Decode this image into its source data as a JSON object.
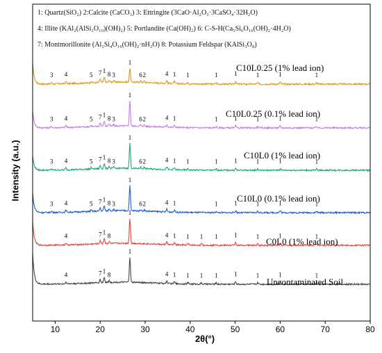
{
  "chart_data": {
    "type": "line",
    "title": "",
    "xlabel": "2θ(°)",
    "ylabel": "Intensity (a.u.)",
    "xlim": [
      5,
      80
    ],
    "x_ticks": [
      10,
      20,
      30,
      40,
      50,
      60,
      70,
      80
    ],
    "grid": false,
    "legend_position": "top-left",
    "legend_lines": [
      "1: Quartz(SiO₂) 2:Calcite (CaCO₃) 3: Ettringite (3CaO·Al₂O₃·3CaSO₄·32H₂O)",
      "4: Illite (KAl₂(AlSi₃O₁₀)(OH)₂) 5: Portlandite (Ca(OH)₂) 6: C-S-H(Ca₅Si₆O₁₆(OH)₂·4H₂O)",
      "7: Montmorillonite (Al₂Si₄O₁₀(OH)₂·nH₂O) 8: Potassium Feldspar (KAlSi₃O₈)"
    ],
    "series": [
      {
        "name": "C10L0.25 (1% lead ion)",
        "color": "#d99a1d",
        "peaks": [
          {
            "x": 9.2,
            "h": 2,
            "label": "3"
          },
          {
            "x": 12.4,
            "h": 3,
            "label": "4"
          },
          {
            "x": 18.0,
            "h": 2,
            "label": "5"
          },
          {
            "x": 20.0,
            "h": 5,
            "label": "7"
          },
          {
            "x": 20.9,
            "h": 8,
            "label": "1"
          },
          {
            "x": 22.0,
            "h": 3,
            "label": "8"
          },
          {
            "x": 23.0,
            "h": 2,
            "label": "3"
          },
          {
            "x": 26.6,
            "h": 20,
            "label": "1"
          },
          {
            "x": 29.0,
            "h": 2,
            "label": "6"
          },
          {
            "x": 29.8,
            "h": 2,
            "label": "2"
          },
          {
            "x": 34.8,
            "h": 4,
            "label": "4"
          },
          {
            "x": 36.5,
            "h": 3,
            "label": "1"
          },
          {
            "x": 39.5,
            "h": 2,
            "label": "1"
          },
          {
            "x": 45.8,
            "h": 2,
            "label": "1"
          },
          {
            "x": 50.1,
            "h": 4,
            "label": "1"
          },
          {
            "x": 55.0,
            "h": 2,
            "label": "1"
          },
          {
            "x": 60.0,
            "h": 3,
            "label": "1"
          },
          {
            "x": 68.1,
            "h": 2,
            "label": "1"
          }
        ]
      },
      {
        "name": "C10L0.25 (0.1% lead ion)",
        "color": "#c47ee6",
        "peaks": [
          {
            "x": 9.2,
            "h": 2,
            "label": "3"
          },
          {
            "x": 12.4,
            "h": 3,
            "label": "4"
          },
          {
            "x": 18.0,
            "h": 2,
            "label": "5"
          },
          {
            "x": 20.0,
            "h": 5,
            "label": "7"
          },
          {
            "x": 20.9,
            "h": 8,
            "label": "1"
          },
          {
            "x": 22.0,
            "h": 3,
            "label": "8"
          },
          {
            "x": 23.0,
            "h": 2,
            "label": "3"
          },
          {
            "x": 26.6,
            "h": 38,
            "label": "1"
          },
          {
            "x": 29.0,
            "h": 2,
            "label": "6"
          },
          {
            "x": 29.8,
            "h": 2,
            "label": "2"
          },
          {
            "x": 34.8,
            "h": 4,
            "label": "4"
          },
          {
            "x": 36.5,
            "h": 3,
            "label": "1"
          },
          {
            "x": 45.8,
            "h": 2,
            "label": "1"
          },
          {
            "x": 50.1,
            "h": 3,
            "label": "1"
          },
          {
            "x": 55.0,
            "h": 2,
            "label": "1"
          },
          {
            "x": 60.0,
            "h": 3,
            "label": "1"
          },
          {
            "x": 68.1,
            "h": 2,
            "label": "1"
          }
        ]
      },
      {
        "name": "C10L0 (1% lead ion)",
        "color": "#1ea86f",
        "peaks": [
          {
            "x": 9.2,
            "h": 2,
            "label": "3"
          },
          {
            "x": 12.4,
            "h": 3,
            "label": "4"
          },
          {
            "x": 18.0,
            "h": 2,
            "label": "5"
          },
          {
            "x": 20.0,
            "h": 5,
            "label": "7"
          },
          {
            "x": 20.9,
            "h": 8,
            "label": "1"
          },
          {
            "x": 22.0,
            "h": 3,
            "label": "8"
          },
          {
            "x": 23.0,
            "h": 2,
            "label": "3"
          },
          {
            "x": 26.6,
            "h": 38,
            "label": "1"
          },
          {
            "x": 29.0,
            "h": 2,
            "label": "6"
          },
          {
            "x": 29.8,
            "h": 2,
            "label": "2"
          },
          {
            "x": 34.8,
            "h": 4,
            "label": "4"
          },
          {
            "x": 36.5,
            "h": 3,
            "label": "1"
          },
          {
            "x": 39.5,
            "h": 2,
            "label": "1"
          },
          {
            "x": 45.8,
            "h": 2,
            "label": "1"
          },
          {
            "x": 50.1,
            "h": 3,
            "label": "1"
          },
          {
            "x": 55.0,
            "h": 2,
            "label": "1"
          },
          {
            "x": 60.0,
            "h": 3,
            "label": "1"
          },
          {
            "x": 68.1,
            "h": 2,
            "label": "1"
          }
        ]
      },
      {
        "name": "C10L0 (0.1% lead ion)",
        "color": "#1a5fcc",
        "peaks": [
          {
            "x": 9.2,
            "h": 2,
            "label": "3"
          },
          {
            "x": 12.4,
            "h": 3,
            "label": "4"
          },
          {
            "x": 18.0,
            "h": 2,
            "label": "5"
          },
          {
            "x": 20.0,
            "h": 5,
            "label": "7"
          },
          {
            "x": 20.9,
            "h": 8,
            "label": "1"
          },
          {
            "x": 22.0,
            "h": 3,
            "label": "8"
          },
          {
            "x": 23.0,
            "h": 2,
            "label": "3"
          },
          {
            "x": 26.6,
            "h": 38,
            "label": "1"
          },
          {
            "x": 29.0,
            "h": 2,
            "label": "6"
          },
          {
            "x": 29.8,
            "h": 2,
            "label": "2"
          },
          {
            "x": 34.8,
            "h": 4,
            "label": "4"
          },
          {
            "x": 36.5,
            "h": 3,
            "label": "1"
          },
          {
            "x": 45.8,
            "h": 2,
            "label": "1"
          },
          {
            "x": 50.1,
            "h": 3,
            "label": "1"
          },
          {
            "x": 55.0,
            "h": 2,
            "label": "1"
          },
          {
            "x": 60.0,
            "h": 3,
            "label": "1"
          },
          {
            "x": 68.1,
            "h": 2,
            "label": "1"
          }
        ]
      },
      {
        "name": "C0L0 (1% lead ion)",
        "color": "#e8413e",
        "peaks": [
          {
            "x": 12.4,
            "h": 3,
            "label": "4"
          },
          {
            "x": 20.0,
            "h": 5,
            "label": "7"
          },
          {
            "x": 20.9,
            "h": 8,
            "label": "1"
          },
          {
            "x": 22.0,
            "h": 3,
            "label": "8"
          },
          {
            "x": 26.6,
            "h": 38,
            "label": "1"
          },
          {
            "x": 34.8,
            "h": 4,
            "label": "4"
          },
          {
            "x": 36.5,
            "h": 3,
            "label": "1"
          },
          {
            "x": 39.5,
            "h": 2,
            "label": "1"
          },
          {
            "x": 42.5,
            "h": 2,
            "label": "1"
          },
          {
            "x": 45.8,
            "h": 2,
            "label": "1"
          },
          {
            "x": 50.1,
            "h": 4,
            "label": "1"
          },
          {
            "x": 55.0,
            "h": 2,
            "label": "1"
          },
          {
            "x": 60.0,
            "h": 3,
            "label": "1"
          },
          {
            "x": 68.1,
            "h": 2,
            "label": "1"
          }
        ]
      },
      {
        "name": "Uncontaminated Soil",
        "color": "#444444",
        "peaks": [
          {
            "x": 12.4,
            "h": 3,
            "label": "4"
          },
          {
            "x": 20.0,
            "h": 5,
            "label": "7"
          },
          {
            "x": 20.9,
            "h": 8,
            "label": "1"
          },
          {
            "x": 22.0,
            "h": 3,
            "label": "8"
          },
          {
            "x": 26.6,
            "h": 38,
            "label": "1"
          },
          {
            "x": 34.8,
            "h": 4,
            "label": "4"
          },
          {
            "x": 36.5,
            "h": 3,
            "label": "1"
          },
          {
            "x": 39.5,
            "h": 2,
            "label": "1"
          },
          {
            "x": 42.5,
            "h": 2,
            "label": "1"
          },
          {
            "x": 45.8,
            "h": 2,
            "label": "1"
          },
          {
            "x": 50.1,
            "h": 4,
            "label": "1"
          },
          {
            "x": 55.0,
            "h": 2,
            "label": "1"
          },
          {
            "x": 60.0,
            "h": 3,
            "label": "1"
          },
          {
            "x": 68.1,
            "h": 2,
            "label": "1"
          }
        ]
      }
    ]
  }
}
